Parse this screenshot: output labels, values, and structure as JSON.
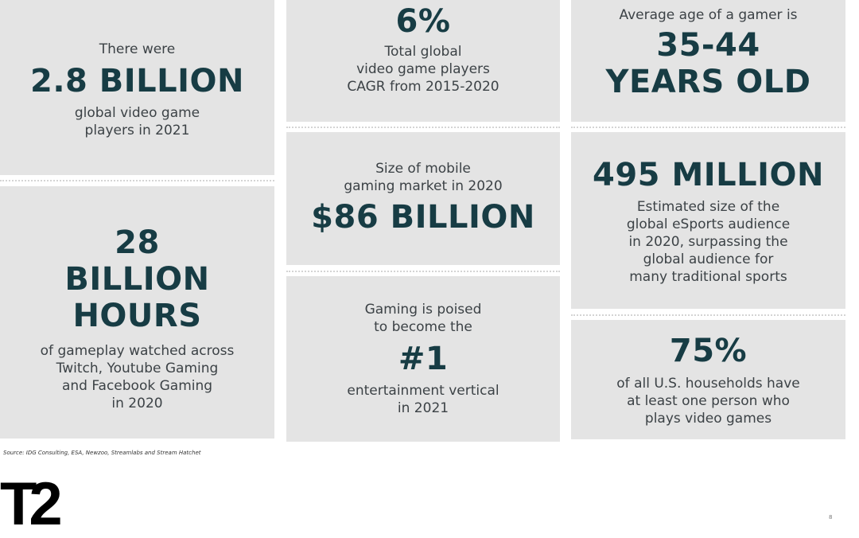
{
  "tiles": {
    "players": {
      "pre": "There were",
      "value": "2.8 BILLION",
      "post": "global video game\nplayers in 2021"
    },
    "hours": {
      "value": "28\nBILLION\nHOURS",
      "post": "of gameplay watched across\nTwitch, Youtube Gaming\nand Facebook Gaming\nin 2020"
    },
    "cagr": {
      "value": "6%",
      "post": "Total global\nvideo game players\nCAGR from 2015-2020"
    },
    "mobile": {
      "pre": "Size of mobile\ngaming market in 2020",
      "value": "$86 BILLION"
    },
    "vertical": {
      "pre": "Gaming is poised\nto become the",
      "value": "#1",
      "post": "entertainment vertical\nin 2021"
    },
    "age": {
      "pre": "Average age of a gamer is",
      "value": "35-44\nYEARS OLD"
    },
    "esports": {
      "value": "495 MILLION",
      "post": "Estimated size of the\nglobal eSports audience\nin 2020, surpassing the\nglobal audience for\nmany traditional sports"
    },
    "households": {
      "value": "75%",
      "post": "of all U.S. households have\nat least one person who\nplays video games"
    }
  },
  "footer": {
    "source": "Source: IDG Consulting, ESA, Newzoo, Streamlabs and Stream Hatchet",
    "logo": "T2",
    "page_number": "8"
  },
  "colors": {
    "tile_background": "#e4e4e4",
    "headline": "#173c44",
    "body_text": "#3c4246"
  }
}
